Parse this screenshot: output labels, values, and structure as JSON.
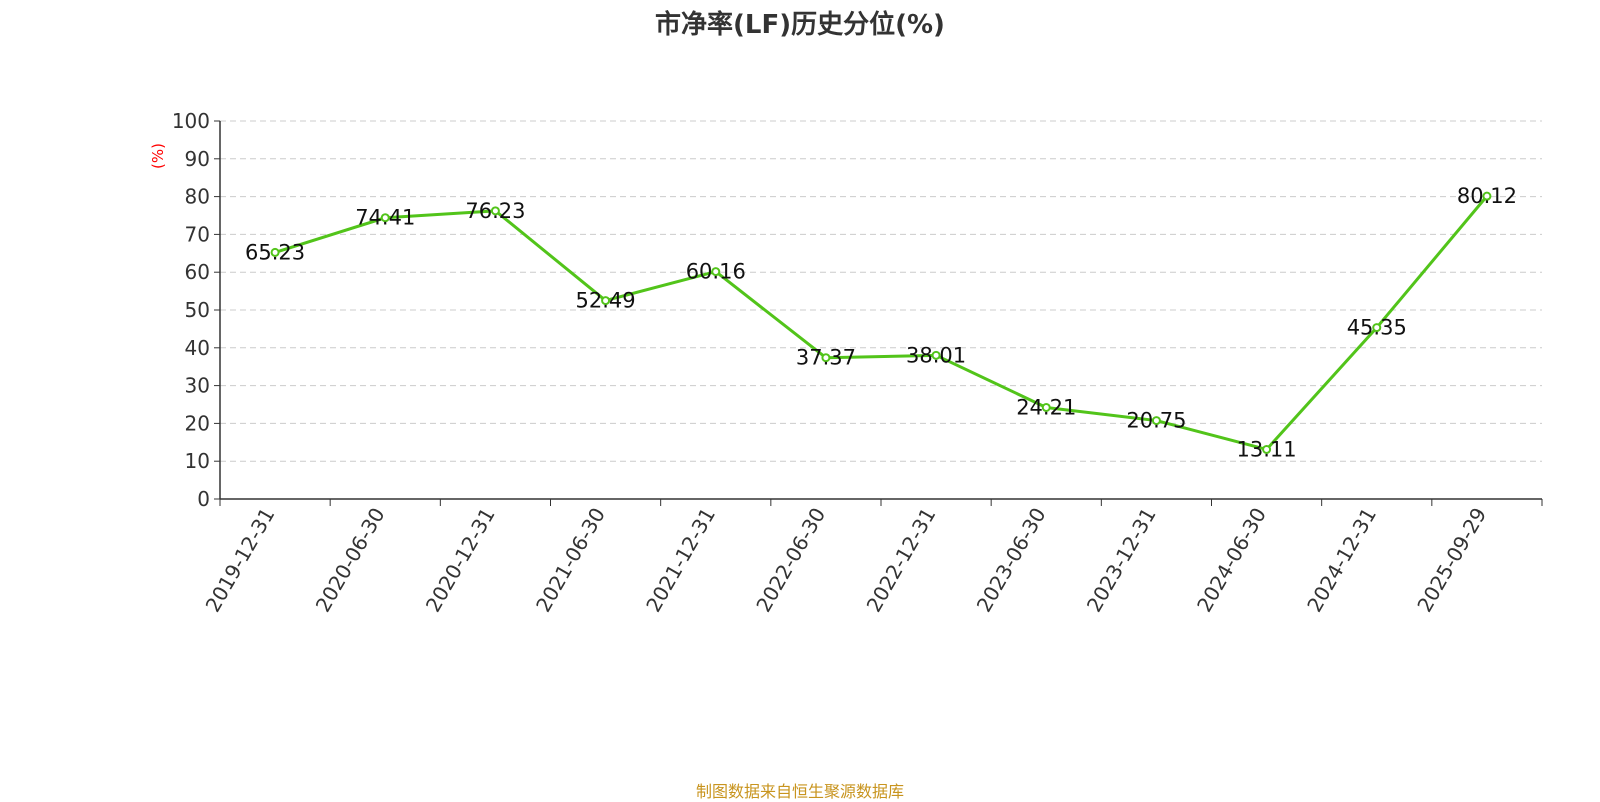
{
  "chart_data": {
    "type": "line",
    "title": "市净率(LF)历史分位(%)",
    "ylabel": "(%)",
    "xlabel": "",
    "ylim": [
      0,
      100
    ],
    "yticks": [
      0,
      10,
      20,
      30,
      40,
      50,
      60,
      70,
      80,
      90,
      100
    ],
    "grid": true,
    "categories": [
      "2019-12-31",
      "2020-06-30",
      "2020-12-31",
      "2021-06-30",
      "2021-12-31",
      "2022-06-30",
      "2022-12-31",
      "2023-06-30",
      "2023-12-31",
      "2024-06-30",
      "2024-12-31",
      "2025-09-29"
    ],
    "series": [
      {
        "values": [
          65.23,
          74.41,
          76.23,
          52.49,
          60.16,
          37.37,
          38.01,
          24.21,
          20.75,
          13.11,
          45.35,
          80.12
        ],
        "labels": [
          "65.23",
          "74.41",
          "76.23",
          "52.49",
          "60.16",
          "37.37",
          "38.01",
          "24.21",
          "20.75",
          "13.11",
          "45.35",
          "80.12"
        ],
        "color": "#52c41a"
      }
    ]
  },
  "footer": {
    "source": "制图数据来自恒生聚源数据库"
  },
  "colors": {
    "line": "#52c41a",
    "ylabel": "#ff0000",
    "source": "#c8941e",
    "grid": "#cccccc",
    "axis": "#333333"
  }
}
